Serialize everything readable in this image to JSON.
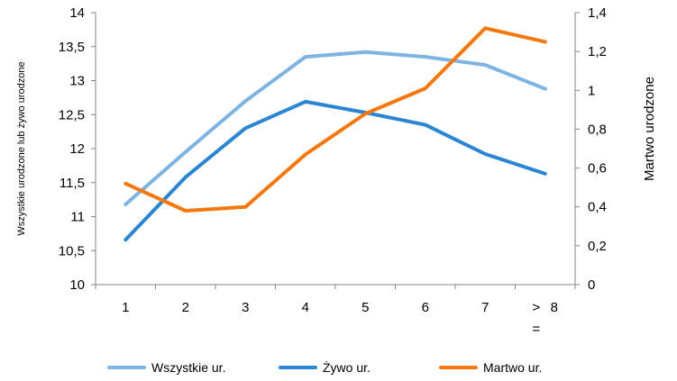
{
  "chart_data": {
    "type": "line",
    "categories": [
      "1",
      "2",
      "3",
      "4",
      "5",
      "6",
      "7",
      "> 8\n="
    ],
    "y_left": {
      "label": "Wszystkie urodzone lub żywo urodzone",
      "min": 10,
      "max": 14,
      "step": 0.5,
      "tick_labels": [
        "10",
        "10,5",
        "11",
        "11,5",
        "12",
        "12,5",
        "13",
        "13,5",
        "14"
      ]
    },
    "y_right": {
      "label": "Martwo urodzone",
      "min": 0,
      "max": 1.4,
      "step": 0.2,
      "tick_labels": [
        "0",
        "0,2",
        "0,4",
        "0,6",
        "0,8",
        "1",
        "1,2",
        "1,4"
      ]
    },
    "series": [
      {
        "name": "Wszystkie ur.",
        "axis": "left",
        "color": "#7EB4E2",
        "values": [
          11.18,
          11.95,
          12.7,
          13.35,
          13.42,
          13.35,
          13.23,
          12.88
        ]
      },
      {
        "name": "Żywo ur.",
        "axis": "left",
        "color": "#2A86D2",
        "values": [
          10.66,
          11.58,
          12.3,
          12.69,
          12.53,
          12.35,
          11.92,
          11.63
        ]
      },
      {
        "name": "Martwo ur.",
        "axis": "right",
        "color": "#F5780F",
        "values": [
          0.52,
          0.38,
          0.4,
          0.67,
          0.88,
          1.01,
          1.32,
          1.25
        ]
      }
    ],
    "grid": false,
    "legend": "bottom"
  }
}
